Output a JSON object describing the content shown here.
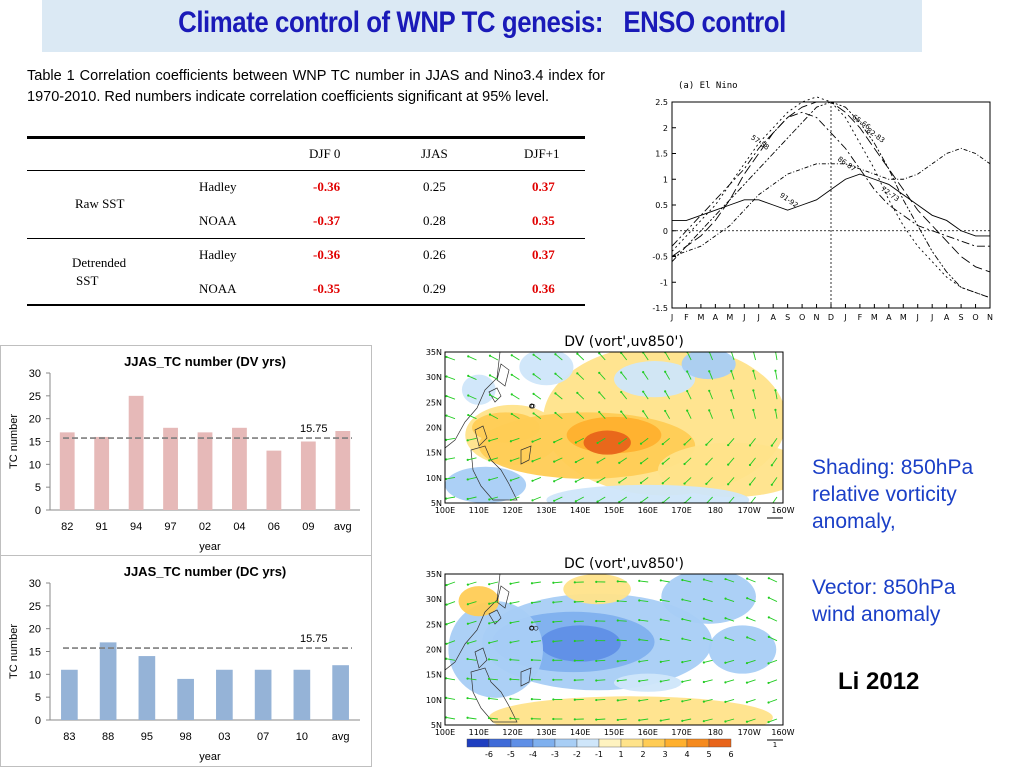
{
  "header": {
    "title": "Climate control of WNP TC genesis:   ENSO control"
  },
  "caption": "Table 1 Correlation coefficients between WNP TC number in JJAS and Nino3.4 index for 1970-2010. Red numbers indicate correlation coefficients significant at 95% level.",
  "table": {
    "columns": [
      "DJF 0",
      "JJAS",
      "DJF+1"
    ],
    "groups": [
      {
        "label_lines": [
          "Raw SST"
        ],
        "rows": [
          {
            "source": "Hadley",
            "values": [
              "-0.36",
              "0.25",
              "0.37"
            ],
            "significant": [
              true,
              false,
              true
            ]
          },
          {
            "source": "NOAA",
            "values": [
              "-0.37",
              "0.28",
              "0.35"
            ],
            "significant": [
              true,
              false,
              true
            ]
          }
        ]
      },
      {
        "label_lines": [
          "Detrended",
          "SST"
        ],
        "rows": [
          {
            "source": "Hadley",
            "values": [
              "-0.36",
              "0.26",
              "0.37"
            ],
            "significant": [
              true,
              false,
              true
            ]
          },
          {
            "source": "NOAA",
            "values": [
              "-0.35",
              "0.29",
              "0.36"
            ],
            "significant": [
              true,
              false,
              true
            ]
          }
        ]
      }
    ]
  },
  "chart_data": [
    {
      "type": "bar",
      "title": "JJAS_TC number (DV yrs)",
      "xlabel": "year",
      "ylabel": "TC number",
      "categories": [
        "82",
        "91",
        "94",
        "97",
        "02",
        "04",
        "06",
        "09",
        "avg"
      ],
      "values": [
        17,
        16,
        25,
        18,
        17,
        18,
        13,
        15,
        17.3
      ],
      "ylim": [
        0,
        30
      ],
      "yticks": [
        0,
        5,
        10,
        15,
        20,
        25,
        30
      ],
      "reference_line": {
        "value": 15.75,
        "label": "15.75"
      },
      "color": "#e6b9b8",
      "grid": false
    },
    {
      "type": "bar",
      "title": "JJAS_TC number (DC yrs)",
      "xlabel": "year",
      "ylabel": "TC number",
      "categories": [
        "83",
        "88",
        "95",
        "98",
        "03",
        "07",
        "10",
        "avg"
      ],
      "values": [
        11,
        17,
        14,
        9,
        11,
        11,
        11,
        12
      ],
      "ylim": [
        0,
        30
      ],
      "yticks": [
        0,
        5,
        10,
        15,
        20,
        25,
        30
      ],
      "reference_line": {
        "value": 15.75,
        "label": "15.75"
      },
      "color": "#95b3d7",
      "grid": false
    },
    {
      "type": "line",
      "title": "(a) El Nino",
      "x_ticks": [
        "J",
        "F",
        "M",
        "A",
        "M",
        "J",
        "J",
        "A",
        "S",
        "O",
        "N",
        "D",
        "J",
        "F",
        "M",
        "A",
        "M",
        "J",
        "J",
        "A",
        "S",
        "O",
        "N"
      ],
      "ylim": [
        -1.5,
        2.5
      ],
      "yticks": [
        "-1.5",
        "-1",
        "-0.5",
        "0",
        "0.5",
        "1",
        "1.5",
        "2",
        "2.5"
      ],
      "series": [
        {
          "name": "57-58",
          "values": [
            -0.3,
            0.0,
            0.3,
            0.6,
            0.9,
            1.2,
            1.6,
            1.9,
            2.2,
            2.3,
            2.2,
            1.9,
            1.6,
            1.2,
            0.8,
            0.5,
            0.3,
            0.1,
            0.0,
            -0.1,
            -0.2,
            -0.3,
            -0.3
          ]
        },
        {
          "name": "65-66",
          "values": [
            -0.5,
            -0.3,
            -0.1,
            0.2,
            0.6,
            1.1,
            1.5,
            1.9,
            2.2,
            2.4,
            2.5,
            2.5,
            2.3,
            2.0,
            1.6,
            1.2,
            0.8,
            0.4,
            0.1,
            -0.2,
            -0.5,
            -0.7,
            -0.8
          ]
        },
        {
          "name": "72-73",
          "values": [
            -0.4,
            -0.1,
            0.2,
            0.5,
            0.9,
            1.3,
            1.7,
            2.0,
            2.3,
            2.5,
            2.6,
            2.5,
            2.2,
            1.7,
            1.2,
            0.6,
            0.1,
            -0.3,
            -0.6,
            -0.9,
            -1.1,
            -1.2,
            -1.3
          ]
        },
        {
          "name": "82-83",
          "values": [
            -0.6,
            -0.3,
            0.0,
            0.3,
            0.6,
            0.9,
            1.2,
            1.5,
            1.8,
            2.1,
            2.4,
            2.5,
            2.4,
            2.1,
            1.7,
            1.2,
            0.6,
            0.1,
            -0.4,
            -0.8,
            -1.1,
            -1.2,
            -1.3
          ]
        },
        {
          "name": "91-92",
          "values": [
            0.2,
            0.2,
            0.3,
            0.4,
            0.5,
            0.6,
            0.6,
            0.5,
            0.4,
            0.5,
            0.6,
            0.8,
            1.0,
            1.1,
            1.0,
            0.9,
            0.7,
            0.5,
            0.3,
            0.2,
            0.0,
            -0.1,
            -0.1
          ]
        },
        {
          "name": "86-87",
          "values": [
            -0.5,
            -0.4,
            -0.3,
            -0.1,
            0.1,
            0.4,
            0.7,
            0.9,
            1.1,
            1.2,
            1.3,
            1.3,
            1.3,
            1.2,
            1.1,
            1.0,
            1.0,
            1.1,
            1.3,
            1.5,
            1.6,
            1.5,
            1.3
          ]
        }
      ]
    }
  ],
  "maps": [
    {
      "title": "DV  (vort',uv850')"
    },
    {
      "title": "DC  (vort',uv850')"
    }
  ],
  "map_axes": {
    "lat_labels": [
      "35N",
      "30N",
      "25N",
      "20N",
      "15N",
      "10N",
      "5N"
    ],
    "lon_labels": [
      "100E",
      "110E",
      "120E",
      "130E",
      "140E",
      "150E",
      "160E",
      "170E",
      "180",
      "170W",
      "160W"
    ],
    "vector_ref": "1"
  },
  "colorbar": {
    "labels": [
      "-6",
      "-5",
      "-4",
      "-3",
      "-2",
      "-1",
      "1",
      "2",
      "3",
      "4",
      "5",
      "6"
    ],
    "colors": [
      "#1f3fc0",
      "#3f6bd8",
      "#5f8fe6",
      "#7fb0ee",
      "#a8cef5",
      "#cfe6fa",
      "#fff3c0",
      "#ffe38a",
      "#ffcc55",
      "#ffb02e",
      "#f58a1e",
      "#e8641a"
    ]
  },
  "notes": {
    "shading": [
      "Shading: 850hPa",
      "relative vorticity",
      "anomaly,"
    ],
    "vector": [
      "Vector: 850hPa",
      "wind anomaly"
    ],
    "credit": "Li 2012"
  }
}
